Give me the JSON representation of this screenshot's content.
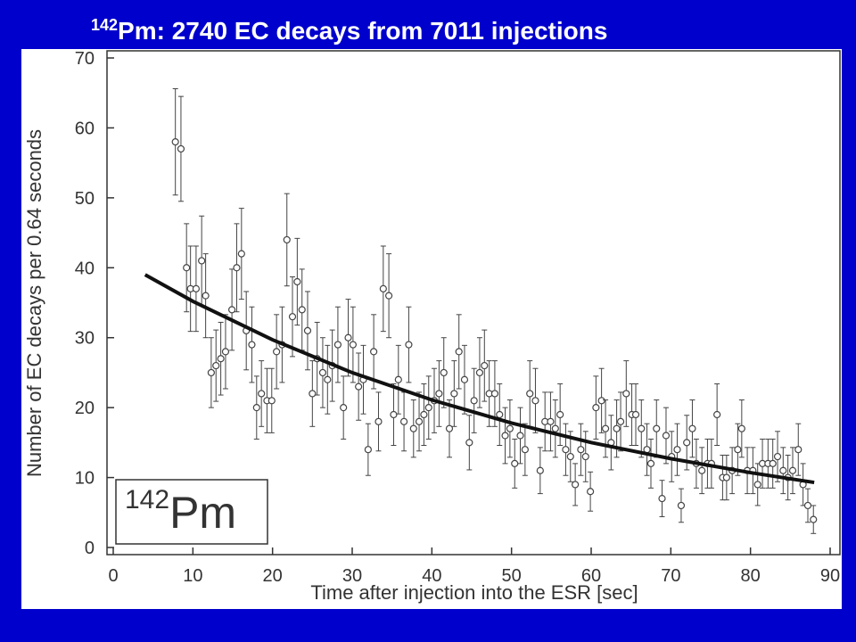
{
  "chart_data": {
    "type": "scatter",
    "title_sup": "142",
    "title": "Pm: 2740 EC decays from 7011 injections",
    "xlabel": "Time after injection into the ESR [sec]",
    "ylabel": "Number of EC decays per 0.64 seconds",
    "inset_sup": "142",
    "inset": "Pm",
    "xlim": [
      0,
      90
    ],
    "ylim": [
      0,
      70
    ],
    "xticks": [
      0,
      10,
      20,
      30,
      40,
      50,
      60,
      70,
      80,
      90
    ],
    "yticks": [
      0,
      10,
      20,
      30,
      40,
      50,
      60,
      70
    ],
    "series": [
      {
        "type": "scatter",
        "color": "#444444",
        "x": [
          7.8,
          8.5,
          9.2,
          9.7,
          10.4,
          11.1,
          11.6,
          12.3,
          12.9,
          13.5,
          14.1,
          14.9,
          15.5,
          16.1,
          16.7,
          17.4,
          18.0,
          18.6,
          19.3,
          19.9,
          20.5,
          21.2,
          21.8,
          22.5,
          23.1,
          23.7,
          24.4,
          25.0,
          25.6,
          26.3,
          26.9,
          27.5,
          28.2,
          28.9,
          29.5,
          30.1,
          30.8,
          31.4,
          32.0,
          32.7,
          33.3,
          33.9,
          34.6,
          35.2,
          35.8,
          36.5,
          37.1,
          37.7,
          38.4,
          39.0,
          39.6,
          40.3,
          40.9,
          41.5,
          42.2,
          42.8,
          43.4,
          44.1,
          44.7,
          45.3,
          46.0,
          46.6,
          47.2,
          47.9,
          48.5,
          49.2,
          49.8,
          50.4,
          51.1,
          51.7,
          52.3,
          53.0,
          53.6,
          54.2,
          54.9,
          55.5,
          56.1,
          56.8,
          57.4,
          58.0,
          58.7,
          59.3,
          59.9,
          60.6,
          61.3,
          61.8,
          62.5,
          63.2,
          63.7,
          64.4,
          65.1,
          65.6,
          66.3,
          67.0,
          67.5,
          68.2,
          68.9,
          69.4,
          70.1,
          70.8,
          71.3,
          72.0,
          72.7,
          73.2,
          73.9,
          74.6,
          75.1,
          75.8,
          76.5,
          77.0,
          77.7,
          78.4,
          78.9,
          79.6,
          80.3,
          80.9,
          81.5,
          82.2,
          82.8,
          83.4,
          84.1,
          84.7,
          85.3,
          86.0,
          86.6,
          87.2,
          87.9
        ],
        "values": [
          58,
          57,
          40,
          37,
          37,
          41,
          36,
          25,
          26,
          27,
          28,
          34,
          40,
          42,
          31,
          29,
          20,
          22,
          21,
          21,
          28,
          29,
          44,
          33,
          38,
          34,
          31,
          22,
          27,
          25,
          24,
          26,
          29,
          20,
          30,
          29,
          23,
          24,
          14,
          28,
          18,
          37,
          36,
          19,
          24,
          18,
          29,
          17,
          18,
          19,
          20,
          21,
          22,
          25,
          17,
          22,
          28,
          24,
          15,
          21,
          25,
          26,
          22,
          22,
          19,
          16,
          17,
          12,
          16,
          14,
          22,
          21,
          11,
          18,
          18,
          17,
          19,
          14,
          13,
          9,
          14,
          13,
          8,
          20,
          21,
          17,
          15,
          17,
          18,
          22,
          19,
          19,
          17,
          14,
          12,
          17,
          7,
          16,
          13,
          14,
          6,
          15,
          17,
          12,
          11,
          12,
          12,
          19,
          10,
          10,
          11,
          14,
          17,
          11,
          11,
          9,
          12,
          12,
          12,
          13,
          11,
          10,
          11,
          14,
          9,
          6,
          4
        ],
        "errors": [
          7.6,
          7.5,
          6.3,
          6.1,
          6.1,
          6.4,
          6,
          5,
          5.1,
          5.2,
          5.3,
          5.8,
          6.3,
          6.5,
          5.6,
          5.4,
          4.5,
          4.7,
          4.6,
          4.6,
          5.3,
          5.4,
          6.6,
          5.7,
          6.2,
          5.8,
          5.6,
          4.7,
          5.2,
          5,
          4.9,
          5.1,
          5.4,
          4.5,
          5.5,
          5.4,
          4.8,
          4.9,
          3.7,
          5.3,
          4.2,
          6.1,
          6,
          4.4,
          4.9,
          4.2,
          5.4,
          4.1,
          4.2,
          4.4,
          4.5,
          4.6,
          4.7,
          5,
          4.1,
          4.7,
          5.3,
          4.9,
          3.9,
          4.6,
          5,
          5.1,
          4.7,
          4.7,
          4.4,
          4,
          4.1,
          3.5,
          4,
          3.7,
          4.7,
          4.6,
          3.3,
          4.2,
          4.2,
          4.1,
          4.4,
          3.7,
          3.6,
          3,
          3.7,
          3.6,
          2.8,
          4.5,
          4.6,
          4.1,
          3.9,
          4.1,
          4.2,
          4.7,
          4.4,
          4.4,
          4.1,
          3.7,
          3.5,
          4.1,
          2.6,
          4,
          3.6,
          3.7,
          2.4,
          3.9,
          4.1,
          3.5,
          3.3,
          3.5,
          3.5,
          4.4,
          3.2,
          3.2,
          3.3,
          3.7,
          4.1,
          3.3,
          3.3,
          3,
          3.5,
          3.5,
          3.5,
          3.6,
          3.3,
          3.2,
          3.3,
          3.7,
          3,
          2.4,
          2
        ]
      },
      {
        "type": "line",
        "color": "#111111",
        "x": [
          4,
          10,
          20,
          30,
          40,
          50,
          60,
          70,
          80,
          88
        ],
        "values": [
          39.0,
          35.2,
          29.7,
          25.0,
          21.1,
          17.8,
          15.0,
          12.7,
          10.7,
          9.3
        ]
      }
    ]
  }
}
